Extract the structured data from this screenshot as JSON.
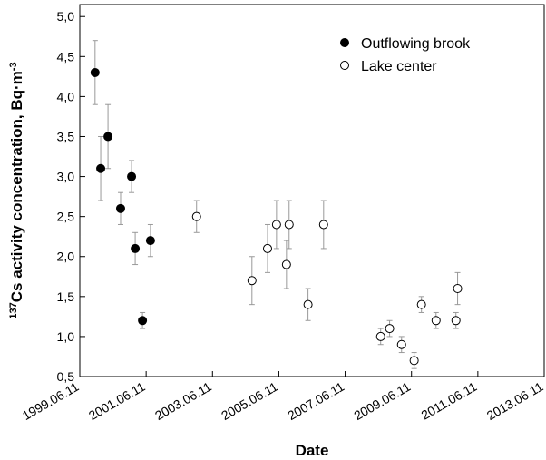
{
  "chart_data": {
    "type": "scatter",
    "x_label": "Date",
    "y_label": {
      "mass_number": "137",
      "text": "Cs activity concentration, Bq·m",
      "exponent": "-3"
    },
    "xlim": [
      1999.44,
      2013.44
    ],
    "xticks": [
      {
        "value": 1999.44,
        "label": "1999.06.11"
      },
      {
        "value": 2001.44,
        "label": "2001.06.11"
      },
      {
        "value": 2003.44,
        "label": "2003.06.11"
      },
      {
        "value": 2005.44,
        "label": "2005.06.11"
      },
      {
        "value": 2007.44,
        "label": "2007.06.11"
      },
      {
        "value": 2009.44,
        "label": "2009.06.11"
      },
      {
        "value": 2011.44,
        "label": "2011.06.11"
      },
      {
        "value": 2013.44,
        "label": "2013.06.11"
      }
    ],
    "ylim": [
      0.5,
      5.15
    ],
    "yticks": [
      {
        "value": 0.5,
        "label": "0,5"
      },
      {
        "value": 1.0,
        "label": "1,0"
      },
      {
        "value": 1.5,
        "label": "1,5"
      },
      {
        "value": 2.0,
        "label": "2,0"
      },
      {
        "value": 2.5,
        "label": "2,5"
      },
      {
        "value": 3.0,
        "label": "3,0"
      },
      {
        "value": 3.5,
        "label": "3,5"
      },
      {
        "value": 4.0,
        "label": "4,0"
      },
      {
        "value": 4.5,
        "label": "4,5"
      },
      {
        "value": 5.0,
        "label": "5,0"
      }
    ],
    "legend_position": "top-right",
    "error_color": "#999999",
    "series": [
      {
        "name": "Outflowing brook",
        "color": "#000000",
        "filled": true,
        "x": [
          1999.9,
          2000.07,
          2000.29,
          2000.67,
          2001.0,
          2001.11,
          2001.33,
          2001.57
        ],
        "values": [
          4.3,
          3.1,
          3.5,
          2.6,
          3.0,
          2.1,
          1.2,
          2.2
        ],
        "errors": [
          0.4,
          0.4,
          0.4,
          0.2,
          0.2,
          0.2,
          0.1,
          0.2
        ]
      },
      {
        "name": "Lake center",
        "color": "#000000",
        "filled": false,
        "x": [
          2002.96,
          2004.63,
          2005.1,
          2005.37,
          2005.67,
          2005.75,
          2006.32,
          2006.79,
          2008.51,
          2008.78,
          2009.14,
          2009.52,
          2009.74,
          2010.18,
          2010.78,
          2010.83
        ],
        "values": [
          2.5,
          1.7,
          2.1,
          2.4,
          1.9,
          2.4,
          1.4,
          2.4,
          1.0,
          1.1,
          0.9,
          0.7,
          1.4,
          1.2,
          1.2,
          1.6
        ],
        "errors": [
          0.2,
          0.3,
          0.3,
          0.3,
          0.3,
          0.3,
          0.2,
          0.3,
          0.1,
          0.1,
          0.1,
          0.1,
          0.1,
          0.1,
          0.1,
          0.2
        ]
      }
    ]
  }
}
